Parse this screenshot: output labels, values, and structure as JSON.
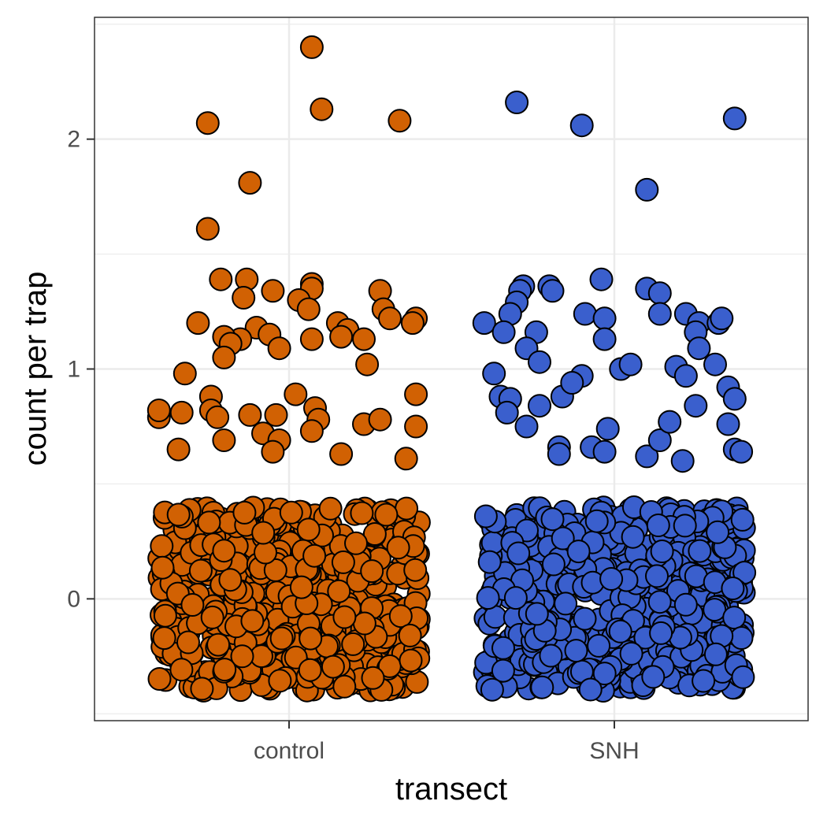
{
  "chart_data": {
    "type": "scatter",
    "title": "",
    "xlabel": "transect",
    "ylabel": "count per trap",
    "categories": [
      "control",
      "SNH"
    ],
    "ylim": [
      -0.53,
      2.53
    ],
    "yticks": [
      0,
      1,
      2
    ],
    "grid": true,
    "legend": "none",
    "jitter": {
      "width": 0.4,
      "height": 0.4
    },
    "series": [
      {
        "category": "control",
        "color": "#D16103",
        "counts": [
          {
            "value": 0,
            "n": 560
          }
        ],
        "points": [
          {
            "x": 0.07,
            "y": 2.4
          },
          {
            "x": 0.1,
            "y": 2.13
          },
          {
            "x": -0.25,
            "y": 2.07
          },
          {
            "x": 0.34,
            "y": 2.08
          },
          {
            "x": -0.12,
            "y": 1.81
          },
          {
            "x": -0.25,
            "y": 1.61
          },
          {
            "x": -0.21,
            "y": 1.39
          },
          {
            "x": -0.13,
            "y": 1.39
          },
          {
            "x": -0.14,
            "y": 1.31
          },
          {
            "x": -0.05,
            "y": 1.34
          },
          {
            "x": 0.07,
            "y": 1.37
          },
          {
            "x": 0.07,
            "y": 1.35
          },
          {
            "x": 0.03,
            "y": 1.3
          },
          {
            "x": 0.06,
            "y": 1.26
          },
          {
            "x": 0.28,
            "y": 1.34
          },
          {
            "x": 0.29,
            "y": 1.26
          },
          {
            "x": 0.31,
            "y": 1.22
          },
          {
            "x": 0.39,
            "y": 1.22
          },
          {
            "x": 0.38,
            "y": 1.2
          },
          {
            "x": -0.28,
            "y": 1.2
          },
          {
            "x": -0.1,
            "y": 1.18
          },
          {
            "x": -0.15,
            "y": 1.13
          },
          {
            "x": -0.2,
            "y": 1.14
          },
          {
            "x": -0.18,
            "y": 1.11
          },
          {
            "x": -0.06,
            "y": 1.15
          },
          {
            "x": -0.03,
            "y": 1.09
          },
          {
            "x": 0.07,
            "y": 1.13
          },
          {
            "x": 0.15,
            "y": 1.2
          },
          {
            "x": 0.18,
            "y": 1.17
          },
          {
            "x": 0.16,
            "y": 1.14
          },
          {
            "x": 0.23,
            "y": 1.13
          },
          {
            "x": 0.24,
            "y": 1.02
          },
          {
            "x": -0.2,
            "y": 1.05
          },
          {
            "x": -0.32,
            "y": 0.98
          },
          {
            "x": -0.24,
            "y": 0.88
          },
          {
            "x": -0.24,
            "y": 0.82
          },
          {
            "x": -0.22,
            "y": 0.79
          },
          {
            "x": -0.33,
            "y": 0.81
          },
          {
            "x": -0.4,
            "y": 0.79
          },
          {
            "x": -0.4,
            "y": 0.82
          },
          {
            "x": -0.34,
            "y": 0.65
          },
          {
            "x": -0.2,
            "y": 0.69
          },
          {
            "x": -0.12,
            "y": 0.8
          },
          {
            "x": -0.04,
            "y": 0.8
          },
          {
            "x": -0.08,
            "y": 0.72
          },
          {
            "x": -0.03,
            "y": 0.69
          },
          {
            "x": -0.05,
            "y": 0.64
          },
          {
            "x": 0.02,
            "y": 0.89
          },
          {
            "x": 0.08,
            "y": 0.83
          },
          {
            "x": 0.09,
            "y": 0.78
          },
          {
            "x": 0.07,
            "y": 0.73
          },
          {
            "x": 0.16,
            "y": 0.63
          },
          {
            "x": 0.23,
            "y": 0.76
          },
          {
            "x": 0.28,
            "y": 0.78
          },
          {
            "x": 0.39,
            "y": 0.89
          },
          {
            "x": 0.39,
            "y": 0.75
          },
          {
            "x": 0.36,
            "y": 0.61
          }
        ]
      },
      {
        "category": "SNH",
        "color": "#3A5FCD",
        "counts": [
          {
            "value": 0,
            "n": 560
          }
        ],
        "points": [
          {
            "x": -0.3,
            "y": 2.16
          },
          {
            "x": -0.1,
            "y": 2.06
          },
          {
            "x": 0.37,
            "y": 2.09
          },
          {
            "x": 0.1,
            "y": 1.78
          },
          {
            "x": -0.28,
            "y": 1.36
          },
          {
            "x": -0.29,
            "y": 1.34
          },
          {
            "x": -0.3,
            "y": 1.29
          },
          {
            "x": -0.32,
            "y": 1.24
          },
          {
            "x": -0.2,
            "y": 1.36
          },
          {
            "x": -0.19,
            "y": 1.34
          },
          {
            "x": -0.04,
            "y": 1.39
          },
          {
            "x": 0.1,
            "y": 1.35
          },
          {
            "x": 0.14,
            "y": 1.33
          },
          {
            "x": -0.4,
            "y": 1.2
          },
          {
            "x": -0.34,
            "y": 1.16
          },
          {
            "x": -0.24,
            "y": 1.16
          },
          {
            "x": -0.27,
            "y": 1.09
          },
          {
            "x": -0.09,
            "y": 1.24
          },
          {
            "x": -0.03,
            "y": 1.22
          },
          {
            "x": -0.03,
            "y": 1.13
          },
          {
            "x": 0.14,
            "y": 1.24
          },
          {
            "x": 0.22,
            "y": 1.24
          },
          {
            "x": 0.26,
            "y": 1.2
          },
          {
            "x": 0.25,
            "y": 1.16
          },
          {
            "x": 0.26,
            "y": 1.09
          },
          {
            "x": 0.32,
            "y": 1.2
          },
          {
            "x": 0.33,
            "y": 1.22
          },
          {
            "x": -0.37,
            "y": 0.98
          },
          {
            "x": -0.23,
            "y": 1.03
          },
          {
            "x": -0.16,
            "y": 0.88
          },
          {
            "x": -0.1,
            "y": 0.97
          },
          {
            "x": -0.13,
            "y": 0.94
          },
          {
            "x": 0.02,
            "y": 1.0
          },
          {
            "x": 0.05,
            "y": 1.02
          },
          {
            "x": 0.19,
            "y": 1.01
          },
          {
            "x": 0.22,
            "y": 0.97
          },
          {
            "x": 0.31,
            "y": 1.02
          },
          {
            "x": -0.35,
            "y": 0.88
          },
          {
            "x": -0.32,
            "y": 0.87
          },
          {
            "x": -0.33,
            "y": 0.81
          },
          {
            "x": -0.23,
            "y": 0.84
          },
          {
            "x": -0.27,
            "y": 0.75
          },
          {
            "x": -0.17,
            "y": 0.66
          },
          {
            "x": -0.17,
            "y": 0.63
          },
          {
            "x": -0.07,
            "y": 0.66
          },
          {
            "x": -0.02,
            "y": 0.74
          },
          {
            "x": -0.03,
            "y": 0.64
          },
          {
            "x": 0.1,
            "y": 0.62
          },
          {
            "x": 0.14,
            "y": 0.69
          },
          {
            "x": 0.17,
            "y": 0.77
          },
          {
            "x": 0.21,
            "y": 0.6
          },
          {
            "x": 0.25,
            "y": 0.84
          },
          {
            "x": 0.35,
            "y": 0.92
          },
          {
            "x": 0.37,
            "y": 0.87
          },
          {
            "x": 0.35,
            "y": 0.76
          },
          {
            "x": 0.37,
            "y": 0.65
          },
          {
            "x": 0.39,
            "y": 0.64
          }
        ]
      }
    ]
  }
}
